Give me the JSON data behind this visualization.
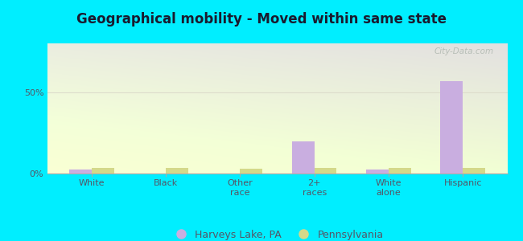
{
  "title": "Geographical mobility - Moved within same state",
  "categories": [
    "White",
    "Black",
    "Other\nrace",
    "2+\nraces",
    "White\nalone",
    "Hispanic"
  ],
  "harveys_lake_values": [
    2.5,
    0,
    0,
    20,
    2.5,
    57
  ],
  "pennsylvania_values": [
    3.5,
    3.5,
    3.0,
    3.5,
    3.5,
    3.5
  ],
  "bar_color_harveys": "#c9aee0",
  "bar_color_pa": "#d4d98a",
  "outer_bg": "#00eeff",
  "ylim": [
    0,
    80
  ],
  "bar_width": 0.3,
  "legend_label_harveys": "Harveys Lake, PA",
  "legend_label_pa": "Pennsylvania",
  "watermark": "City-Data.com",
  "title_color": "#1a1a2e",
  "tick_color": "#555566",
  "grid_color": "#ddddcc"
}
